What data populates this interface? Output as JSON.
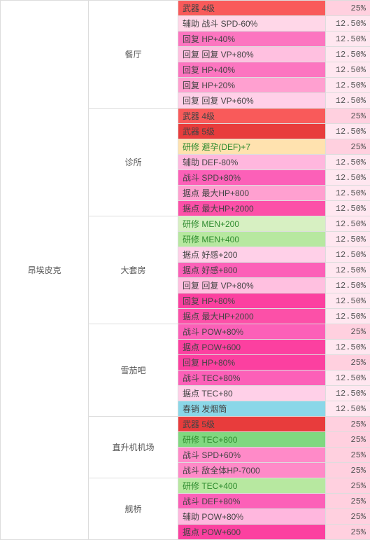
{
  "colors": {
    "border": "#dddddd",
    "text": "#555555",
    "greenText": "#2e8b2e"
  },
  "ship": "昂埃皮克",
  "rooms": [
    {
      "name": "餐厅",
      "rows": [
        {
          "desc": "武器 4级",
          "descBg": "#f95a5a",
          "pct": "25%",
          "pctBg": "#ffd0df"
        },
        {
          "desc": "辅助 战斗 SPD-60%",
          "descBg": "#ffd7e8",
          "pct": "12.50%",
          "pctBg": "#ffe7f0"
        },
        {
          "desc": "回复 HP+40%",
          "descBg": "#fc75c0",
          "pct": "12.50%",
          "pctBg": "#ffe7f0"
        },
        {
          "desc": "回复 回复 VP+80%",
          "descBg": "#ffc0e0",
          "pct": "12.50%",
          "pctBg": "#ffe7f0"
        },
        {
          "desc": "回复 HP+40%",
          "descBg": "#fc75c0",
          "pct": "12.50%",
          "pctBg": "#ffe7f0"
        },
        {
          "desc": "回复 HP+20%",
          "descBg": "#ffa0d0",
          "pct": "12.50%",
          "pctBg": "#ffe7f0"
        },
        {
          "desc": "回复 回复 VP+60%",
          "descBg": "#ffd0e8",
          "pct": "12.50%",
          "pctBg": "#ffe7f0"
        }
      ]
    },
    {
      "name": "诊所",
      "rows": [
        {
          "desc": "武器 4级",
          "descBg": "#f95a5a",
          "pct": "25%",
          "pctBg": "#ffd0df"
        },
        {
          "desc": "武器 5级",
          "descBg": "#e83c3c",
          "pct": "12.50%",
          "pctBg": "#ffe7f0"
        },
        {
          "desc": "研修 避孕(DEF)+7",
          "descBg": "#ffe2af",
          "pct": "25%",
          "pctBg": "#ffd0df",
          "green": true
        },
        {
          "desc": "辅助 DEF-80%",
          "descBg": "#ffb7de",
          "pct": "12.50%",
          "pctBg": "#ffe7f0"
        },
        {
          "desc": "战斗 SPD+80%",
          "descBg": "#fc60b8",
          "pct": "12.50%",
          "pctBg": "#ffe7f0"
        },
        {
          "desc": "据点 最大HP+800",
          "descBg": "#ffa0d0",
          "pct": "12.50%",
          "pctBg": "#ffe7f0"
        },
        {
          "desc": "据点 最大HP+2000",
          "descBg": "#fc50a8",
          "pct": "12.50%",
          "pctBg": "#ffe7f0"
        }
      ]
    },
    {
      "name": "大套房",
      "rows": [
        {
          "desc": "研修 MEN+200",
          "descBg": "#d7f0c2",
          "pct": "12.50%",
          "pctBg": "#ffe7f0",
          "green": true
        },
        {
          "desc": "研修 MEN+400",
          "descBg": "#b7e8a0",
          "pct": "12.50%",
          "pctBg": "#ffe7f0",
          "green": true
        },
        {
          "desc": "据点 好感+200",
          "descBg": "#ffd0e8",
          "pct": "12.50%",
          "pctBg": "#ffe7f0"
        },
        {
          "desc": "据点 好感+800",
          "descBg": "#fc60b8",
          "pct": "12.50%",
          "pctBg": "#ffe7f0"
        },
        {
          "desc": "回复 回复 VP+80%",
          "descBg": "#ffc0e0",
          "pct": "12.50%",
          "pctBg": "#ffe7f0"
        },
        {
          "desc": "回复 HP+80%",
          "descBg": "#fc40a0",
          "pct": "12.50%",
          "pctBg": "#ffe7f0"
        },
        {
          "desc": "据点 最大HP+2000",
          "descBg": "#fc50a8",
          "pct": "12.50%",
          "pctBg": "#ffe7f0"
        }
      ]
    },
    {
      "name": "雪茄吧",
      "rows": [
        {
          "desc": "战斗 POW+80%",
          "descBg": "#fc60b8",
          "pct": "25%",
          "pctBg": "#ffd0df"
        },
        {
          "desc": "据点 POW+600",
          "descBg": "#fc40a0",
          "pct": "12.50%",
          "pctBg": "#ffe7f0"
        },
        {
          "desc": "回复 HP+80%",
          "descBg": "#fc40a0",
          "pct": "25%",
          "pctBg": "#ffd0df"
        },
        {
          "desc": "战斗 TEC+80%",
          "descBg": "#fc60b8",
          "pct": "12.50%",
          "pctBg": "#ffe7f0"
        },
        {
          "desc": "据点 TEC+80",
          "descBg": "#ffd0e8",
          "pct": "12.50%",
          "pctBg": "#ffe7f0"
        },
        {
          "desc": "春销 发烟筒",
          "descBg": "#8ad7e8",
          "pct": "12.50%",
          "pctBg": "#ffe7f0"
        }
      ]
    },
    {
      "name": "直升机机场",
      "rows": [
        {
          "desc": "武器 5级",
          "descBg": "#e83c3c",
          "pct": "25%",
          "pctBg": "#ffd0df"
        },
        {
          "desc": "研修 TEC+800",
          "descBg": "#80d880",
          "pct": "25%",
          "pctBg": "#ffd0df",
          "green": true
        },
        {
          "desc": "战斗 SPD+60%",
          "descBg": "#ff8ac8",
          "pct": "25%",
          "pctBg": "#ffd0df"
        },
        {
          "desc": "战斗 敌全体HP-7000",
          "descBg": "#ff8ac8",
          "pct": "25%",
          "pctBg": "#ffd0df"
        }
      ]
    },
    {
      "name": "舰桥",
      "rows": [
        {
          "desc": "研修 TEC+400",
          "descBg": "#b7e8a0",
          "pct": "25%",
          "pctBg": "#ffd0df",
          "green": true
        },
        {
          "desc": "战斗 DEF+80%",
          "descBg": "#fc60b8",
          "pct": "25%",
          "pctBg": "#ffd0df"
        },
        {
          "desc": "辅助 POW+80%",
          "descBg": "#ffb7de",
          "pct": "25%",
          "pctBg": "#ffd0df"
        },
        {
          "desc": "据点 POW+600",
          "descBg": "#fc40a0",
          "pct": "25%",
          "pctBg": "#ffd0df"
        }
      ]
    }
  ]
}
